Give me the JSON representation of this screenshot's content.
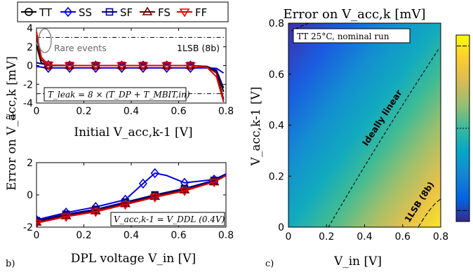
{
  "chart_data": [
    {
      "panel": "a)",
      "type": "line",
      "xlabel": "Initial V_acc,k-1 [V]",
      "ylabel": "Error on V_acc,k [mV]",
      "xlim": [
        0,
        0.8
      ],
      "ylim": [
        -4,
        4
      ],
      "xticks": [
        "0",
        "0.2",
        "0.4",
        "0.6",
        "0.8"
      ],
      "yticks": [
        "-4",
        "-2",
        "0",
        "2",
        "4"
      ],
      "legend": [
        "TT",
        "SS",
        "SF",
        "FS",
        "FF"
      ],
      "legend_placement": "top",
      "annotations": [
        "Rare events",
        "1LSB (8b)",
        "T_leak = 8 × (T_DP + T_MBIT,in)"
      ],
      "lsb_lines": [
        3,
        -3
      ],
      "series": [
        {
          "name": "TT",
          "x": [
            0,
            0.02,
            0.05,
            0.14,
            0.25,
            0.36,
            0.45,
            0.55,
            0.65,
            0.72,
            0.76,
            0.79
          ],
          "y": [
            2.2,
            0.3,
            0,
            0,
            0,
            0,
            0,
            0,
            0,
            -0.1,
            -0.6,
            -2.8
          ]
        },
        {
          "name": "SS",
          "x": [
            0,
            0.05,
            0.14,
            0.25,
            0.36,
            0.45,
            0.55,
            0.65,
            0.72,
            0.76,
            0.79
          ],
          "y": [
            -0.1,
            -0.25,
            -0.25,
            -0.25,
            -0.25,
            -0.25,
            -0.25,
            -0.25,
            -0.25,
            -0.3,
            -0.8
          ]
        },
        {
          "name": "SF",
          "x": [
            0,
            0.05,
            0.14,
            0.25,
            0.36,
            0.45,
            0.55,
            0.65,
            0.72,
            0.76,
            0.79
          ],
          "y": [
            0.3,
            0.05,
            0,
            0,
            0,
            0,
            0,
            0,
            -0.1,
            -0.5,
            -2.4
          ]
        },
        {
          "name": "FS",
          "x": [
            0,
            0.02,
            0.05,
            0.14,
            0.25,
            0.36,
            0.45,
            0.55,
            0.65,
            0.72,
            0.76,
            0.79
          ],
          "y": [
            3.2,
            0.6,
            0.05,
            0,
            0,
            0,
            0,
            0,
            0,
            -0.15,
            -0.8,
            -3.6
          ]
        },
        {
          "name": "FF",
          "x": [
            0,
            0.02,
            0.05,
            0.14,
            0.25,
            0.36,
            0.45,
            0.55,
            0.65,
            0.72,
            0.76,
            0.79
          ],
          "y": [
            3.6,
            0.9,
            0.05,
            0,
            0,
            0,
            0,
            0,
            0,
            -0.2,
            -1.2,
            -3.9
          ]
        }
      ]
    },
    {
      "panel": "b)",
      "type": "line",
      "xlabel": "DPL voltage V_in [V]",
      "ylabel": "",
      "xlim": [
        0,
        0.8
      ],
      "ylim": [
        -2,
        2
      ],
      "xticks": [
        "0",
        "0.2",
        "0.4",
        "0.6",
        "0.8"
      ],
      "yticks": [
        "-2",
        "0",
        "2"
      ],
      "annotations": [
        "V_acc,k-1 = V_DDL (0.4V)"
      ],
      "series": [
        {
          "name": "TT",
          "x": [
            0,
            0.125,
            0.25,
            0.375,
            0.5,
            0.625,
            0.75,
            0.8
          ],
          "y": [
            -1.65,
            -1.25,
            -0.95,
            -0.5,
            -0.05,
            0.35,
            0.85,
            1.2
          ]
        },
        {
          "name": "SS",
          "x": [
            0,
            0.125,
            0.25,
            0.375,
            0.45,
            0.5,
            0.55,
            0.625,
            0.75,
            0.8
          ],
          "y": [
            -1.55,
            -1.1,
            -0.75,
            -0.3,
            0.7,
            1.35,
            1.2,
            0.75,
            0.95,
            1.3
          ]
        },
        {
          "name": "SF",
          "x": [
            0,
            0.125,
            0.25,
            0.375,
            0.5,
            0.625,
            0.75,
            0.8
          ],
          "y": [
            -1.6,
            -1.2,
            -0.9,
            -0.45,
            0,
            0.4,
            0.9,
            1.25
          ]
        },
        {
          "name": "FS",
          "x": [
            0,
            0.125,
            0.25,
            0.375,
            0.5,
            0.625,
            0.75,
            0.8
          ],
          "y": [
            -1.7,
            -1.3,
            -1.0,
            -0.55,
            -0.1,
            0.3,
            0.8,
            1.2
          ]
        },
        {
          "name": "FF",
          "x": [
            0,
            0.125,
            0.25,
            0.375,
            0.5,
            0.625,
            0.75,
            0.8
          ],
          "y": [
            -1.75,
            -1.35,
            -1.05,
            -0.6,
            -0.15,
            0.25,
            0.8,
            1.2
          ]
        }
      ]
    },
    {
      "panel": "c)",
      "type": "heatmap",
      "title": "Error on V_acc,k [mV]",
      "xlabel": "V_in [V]",
      "ylabel": "V_acc,k-1 [V]",
      "xlim": [
        0,
        0.8
      ],
      "ylim": [
        0,
        0.8
      ],
      "xticks": [
        "0",
        "0.2",
        "0.4",
        "0.6",
        "0.8"
      ],
      "yticks": [
        "0",
        "0.2",
        "0.4",
        "0.6",
        "0.8"
      ],
      "annotations": [
        "TT 25°C, nominal run",
        "Ideally linear",
        "1LSB (8b)"
      ],
      "colormap": "parula",
      "colorbar_ticks_mV": [
        3,
        0,
        -3
      ],
      "zlim": [
        -3.4,
        3.4
      ]
    }
  ],
  "colors": {
    "TT": "#000000",
    "SS": "#0000e6",
    "SF": "#00008b",
    "FS": "#6b0000",
    "FF": "#e00000"
  }
}
